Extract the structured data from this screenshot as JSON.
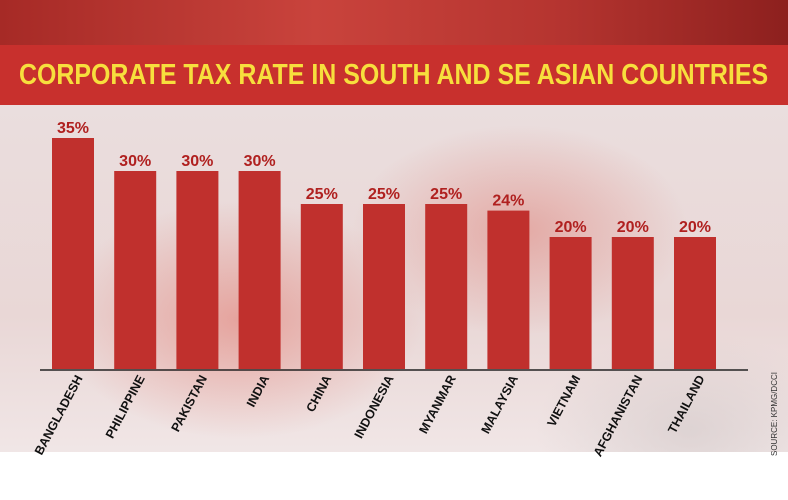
{
  "chart_data": {
    "type": "bar",
    "title": "CORPORATE TAX RATE IN SOUTH AND SE ASIAN COUNTRIES",
    "categories": [
      "BANGLADESH",
      "PHILIPPINE",
      "PAKISTAN",
      "INDIA",
      "CHINA",
      "INDONESIA",
      "MYANMAR",
      "MALAYSIA",
      "VIETNAM",
      "AFGHANISTAN",
      "THAILAND"
    ],
    "values": [
      35,
      30,
      30,
      30,
      25,
      25,
      25,
      24,
      20,
      20,
      20
    ],
    "data_labels": [
      "35%",
      "30%",
      "30%",
      "30%",
      "25%",
      "25%",
      "25%",
      "24%",
      "20%",
      "20%",
      "20%"
    ],
    "unit": "%",
    "ylim": [
      0,
      35
    ],
    "xlabel": "",
    "ylabel": "",
    "grid": false,
    "source": "SOURCE: KPMG/DCCI",
    "colors": {
      "bar": "#c0302d",
      "title_text": "#f7df3d",
      "title_band": "#c8302d",
      "data_label": "#b0201f"
    }
  }
}
